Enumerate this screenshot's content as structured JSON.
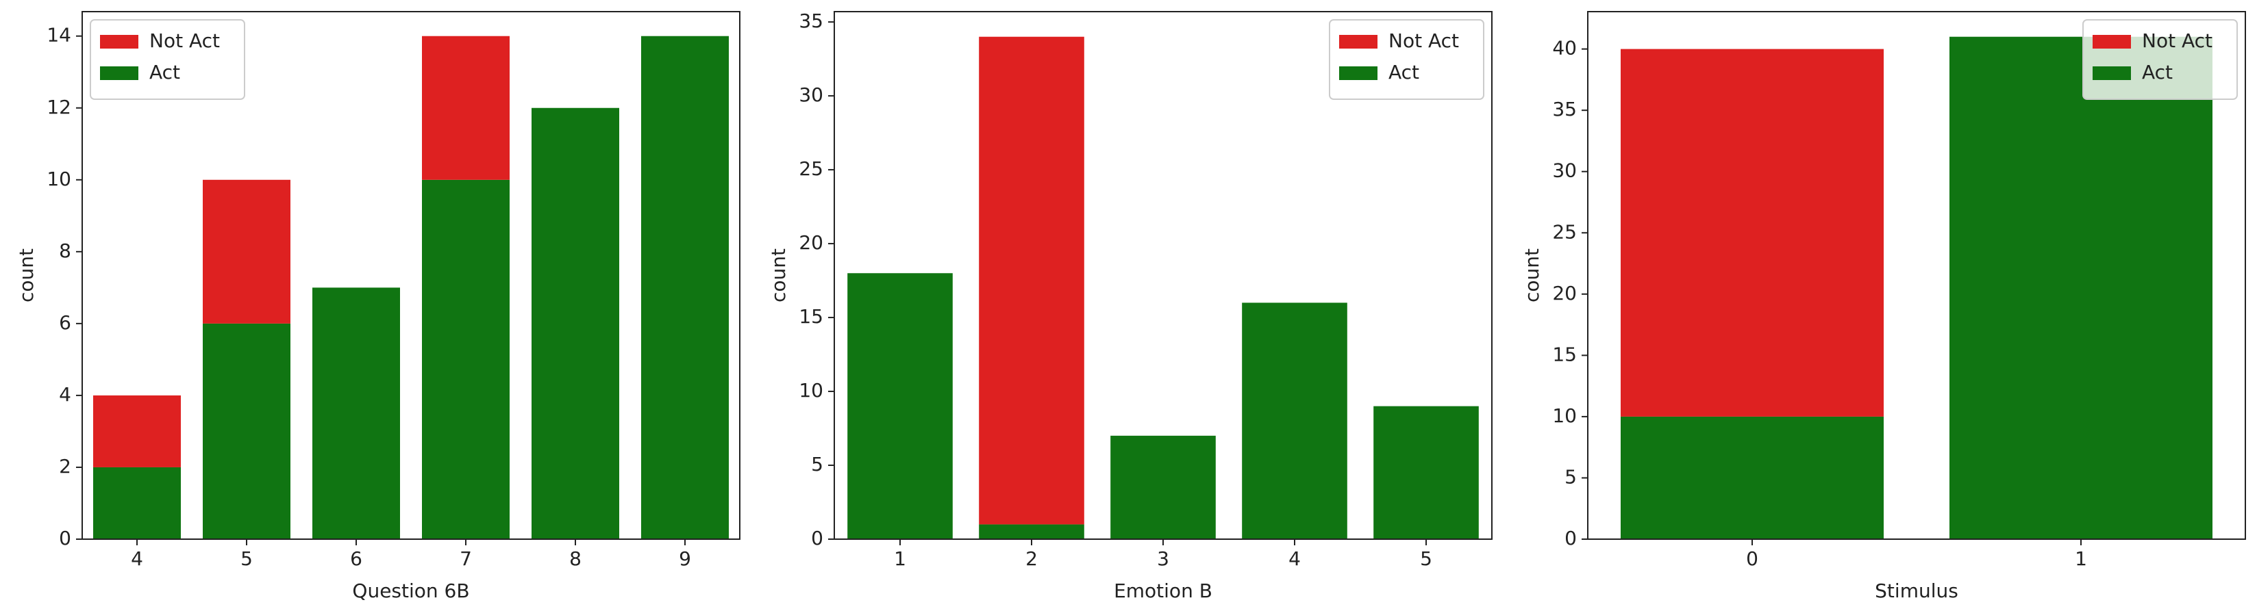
{
  "chart_data": [
    {
      "type": "bar",
      "xlabel": "Question 6B",
      "ylabel": "count",
      "categories": [
        "4",
        "5",
        "6",
        "7",
        "8",
        "9"
      ],
      "series": [
        {
          "name": "Not Act",
          "color": "#de2121",
          "values": [
            2,
            4,
            0,
            4,
            0,
            0
          ]
        },
        {
          "name": "Act",
          "color": "#107512",
          "values": [
            2,
            6,
            7,
            10,
            12,
            14
          ]
        }
      ],
      "ylim": [
        0,
        14.68
      ],
      "yticks": [
        0,
        2,
        4,
        6,
        8,
        10,
        12,
        14
      ],
      "legend": "upper left"
    },
    {
      "type": "bar",
      "xlabel": "Emotion B",
      "ylabel": "count",
      "categories": [
        "1",
        "2",
        "3",
        "4",
        "5"
      ],
      "series": [
        {
          "name": "Not Act",
          "color": "#de2121",
          "values": [
            0,
            33,
            0,
            0,
            0
          ]
        },
        {
          "name": "Act",
          "color": "#107512",
          "values": [
            18,
            1,
            7,
            16,
            9
          ]
        }
      ],
      "ylim": [
        0,
        35.7
      ],
      "yticks": [
        0,
        5,
        10,
        15,
        20,
        25,
        30,
        35
      ],
      "legend": "upper right"
    },
    {
      "type": "bar",
      "xlabel": "Stimulus",
      "ylabel": "count",
      "categories": [
        "0",
        "1"
      ],
      "series": [
        {
          "name": "Not Act",
          "color": "#de2121",
          "values": [
            30,
            0
          ]
        },
        {
          "name": "Act",
          "color": "#107512",
          "values": [
            10,
            41
          ]
        }
      ],
      "ylim": [
        0,
        43.05
      ],
      "yticks": [
        0,
        5,
        10,
        15,
        20,
        25,
        30,
        35,
        40
      ],
      "legend": "upper right"
    }
  ]
}
